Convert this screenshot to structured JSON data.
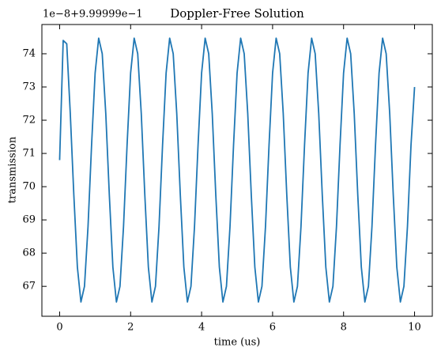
{
  "chart_data": {
    "type": "line",
    "title": "Doppler-Free Solution",
    "x_label": "time (us)",
    "y_label": "transmission",
    "y_offset_label": "1e−8+9.99999e−1",
    "x": [
      0.0,
      0.1,
      0.2,
      0.3,
      0.4,
      0.5,
      0.6,
      0.7,
      0.8,
      0.9,
      1.0,
      1.1,
      1.2,
      1.3,
      1.4,
      1.5,
      1.6,
      1.7,
      1.8,
      1.9,
      2.0,
      2.1,
      2.2,
      2.3,
      2.4,
      2.5,
      2.6,
      2.7,
      2.8,
      2.9,
      3.0,
      3.1,
      3.2,
      3.3,
      3.4,
      3.5,
      3.6,
      3.7,
      3.8,
      3.9,
      4.0,
      4.1,
      4.2,
      4.3,
      4.4,
      4.5,
      4.6,
      4.7,
      4.8,
      4.9,
      5.0,
      5.1,
      5.2,
      5.3,
      5.4,
      5.5,
      5.6,
      5.7,
      5.8,
      5.9,
      6.0,
      6.1,
      6.2,
      6.3,
      6.4,
      6.5,
      6.6,
      6.7,
      6.8,
      6.9,
      7.0,
      7.1,
      7.2,
      7.3,
      7.4,
      7.5,
      7.6,
      7.7,
      7.8,
      7.9,
      8.0,
      8.1,
      8.2,
      8.3,
      8.4,
      8.5,
      8.6,
      8.7,
      8.8,
      8.9,
      9.0,
      9.1,
      9.2,
      9.3,
      9.4,
      9.5,
      9.6,
      9.7,
      9.8,
      9.9,
      10.0
    ],
    "values": [
      70.8,
      74.4,
      74.3,
      72.2,
      69.75,
      67.58,
      66.53,
      67.0,
      68.8,
      71.25,
      73.42,
      74.47,
      74.0,
      72.2,
      69.75,
      67.58,
      66.53,
      67.0,
      68.8,
      71.25,
      73.42,
      74.47,
      74.0,
      72.2,
      69.75,
      67.58,
      66.53,
      67.0,
      68.8,
      71.25,
      73.42,
      74.47,
      74.0,
      72.2,
      69.75,
      67.58,
      66.53,
      67.0,
      68.8,
      71.25,
      73.42,
      74.47,
      74.0,
      72.2,
      69.75,
      67.58,
      66.53,
      67.0,
      68.8,
      71.25,
      73.42,
      74.47,
      74.0,
      72.2,
      69.75,
      67.58,
      66.53,
      67.0,
      68.8,
      71.25,
      73.42,
      74.47,
      74.0,
      72.2,
      69.75,
      67.58,
      66.53,
      67.0,
      68.8,
      71.25,
      73.42,
      74.47,
      74.0,
      72.2,
      69.75,
      67.58,
      66.53,
      67.0,
      68.8,
      71.25,
      73.42,
      74.47,
      74.0,
      72.2,
      69.75,
      67.58,
      66.53,
      67.0,
      68.8,
      71.25,
      73.42,
      74.47,
      74.0,
      72.2,
      69.75,
      67.58,
      66.53,
      67.0,
      68.8,
      71.25,
      73.0
    ],
    "color": "#1f77b4",
    "xlim": [
      -0.5,
      10.5
    ],
    "xticks": [
      0,
      2,
      4,
      6,
      8,
      10
    ],
    "ylim": [
      66.1,
      74.88
    ],
    "yticks": [
      67,
      68,
      69,
      70,
      71,
      72,
      73,
      74
    ]
  }
}
